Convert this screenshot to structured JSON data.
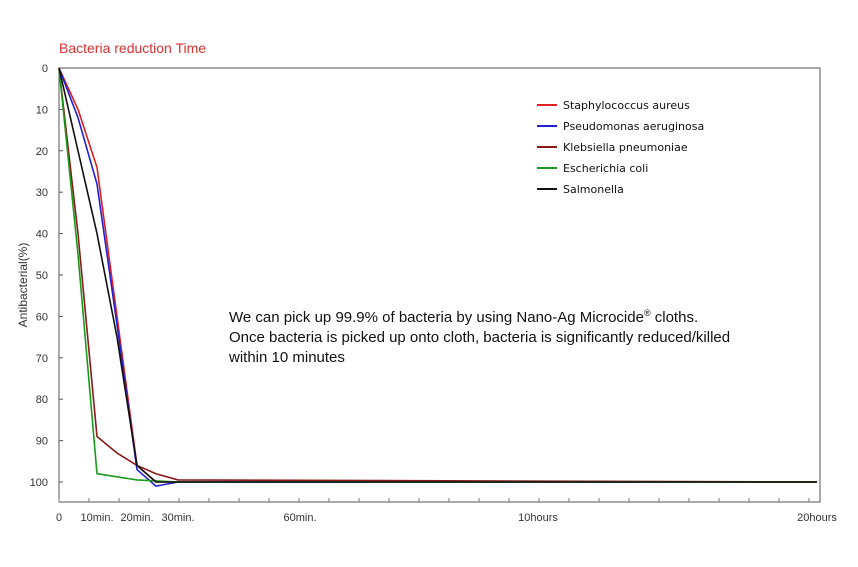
{
  "chart_data": {
    "type": "line",
    "title": "Bacteria reduction Time",
    "title_color": "#e03030",
    "xlabel": "",
    "ylabel": "Antibacterial(%)",
    "ylim": [
      0,
      100
    ],
    "y_inverted": true,
    "y_ticks": [
      0,
      10,
      20,
      30,
      40,
      50,
      60,
      70,
      80,
      90,
      100
    ],
    "x_tick_labels": [
      "0",
      "10min.",
      "20min.",
      "30min.",
      "60min.",
      "10hours",
      "20hours"
    ],
    "grid": false,
    "legend_position": "top-right",
    "series": [
      {
        "name": "Staphylococcus aureus",
        "color": "#e02020",
        "points": [
          [
            "0",
            0
          ],
          [
            "5min.",
            10
          ],
          [
            "10min.",
            24
          ],
          [
            "15min.",
            60
          ],
          [
            "20min.",
            96
          ],
          [
            "25min.",
            100
          ],
          [
            "30min.",
            100
          ],
          [
            "20hours",
            100
          ]
        ]
      },
      {
        "name": "Pseudomonas aeruginosa",
        "color": "#2020d0",
        "points": [
          [
            "0",
            0
          ],
          [
            "5min.",
            12
          ],
          [
            "10min.",
            28
          ],
          [
            "15min.",
            62
          ],
          [
            "20min.",
            97
          ],
          [
            "25min.",
            101
          ],
          [
            "30min.",
            100
          ],
          [
            "20hours",
            100
          ]
        ]
      },
      {
        "name": "Klebsiella pneumoniae",
        "color": "#8b1a1a",
        "points": [
          [
            "0",
            0
          ],
          [
            "5min.",
            40
          ],
          [
            "10min.",
            89
          ],
          [
            "15min.",
            93
          ],
          [
            "20min.",
            96
          ],
          [
            "25min.",
            98
          ],
          [
            "30min.",
            99.5
          ],
          [
            "20hours",
            100
          ]
        ]
      },
      {
        "name": "Escherichia coli",
        "color": "#1a9a1a",
        "points": [
          [
            "0",
            0
          ],
          [
            "5min.",
            45
          ],
          [
            "10min.",
            98
          ],
          [
            "20min.",
            99.5
          ],
          [
            "30min.",
            100
          ],
          [
            "20hours",
            100
          ]
        ]
      },
      {
        "name": "Salmonella",
        "color": "#111111",
        "points": [
          [
            "0",
            0
          ],
          [
            "5min.",
            20
          ],
          [
            "10min.",
            40
          ],
          [
            "15min.",
            65
          ],
          [
            "20min.",
            96
          ],
          [
            "25min.",
            100
          ],
          [
            "30min.",
            100
          ],
          [
            "20hours",
            100
          ]
        ]
      }
    ]
  },
  "annotation": {
    "line1_pre": "We can pick up 99.9% of bacteria by using Nano-Ag Microcide",
    "line1_mark": "®",
    "line1_post": " cloths.",
    "line2": "Once bacteria is picked up onto cloth, bacteria is significantly reduced/killed",
    "line3": "within 10 minutes"
  }
}
